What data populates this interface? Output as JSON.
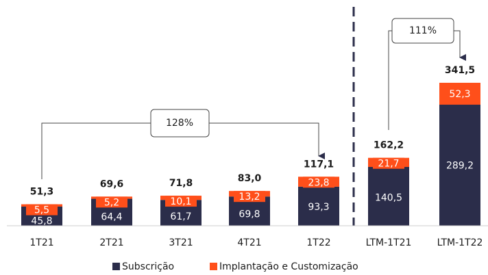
{
  "chart_data": {
    "type": "stacked_bar",
    "categories": [
      "1T21",
      "2T21",
      "3T21",
      "4T21",
      "1T22",
      "LTM-1T21",
      "LTM-1T22"
    ],
    "series": [
      {
        "name": "Subscrição",
        "color": "#2b2d4a",
        "values": [
          45.8,
          64.4,
          61.7,
          69.8,
          93.3,
          140.5,
          289.2
        ],
        "value_labels": [
          "45,8",
          "64,4",
          "61,7",
          "69,8",
          "93,3",
          "140,5",
          "289,2"
        ]
      },
      {
        "name": "Implantação e Customização",
        "color": "#ff4f1a",
        "values": [
          5.5,
          5.2,
          10.1,
          13.2,
          23.8,
          21.7,
          52.3
        ],
        "value_labels": [
          "5,5",
          "5,2",
          "10,1",
          "13,2",
          "23,8",
          "21,7",
          "52,3"
        ]
      }
    ],
    "totals": [
      51.3,
      69.6,
      71.8,
      83.0,
      117.1,
      162.2,
      341.5
    ],
    "total_labels": [
      "51,3",
      "69,6",
      "71,8",
      "83,0",
      "117,1",
      "162,2",
      "341,5"
    ],
    "annotations": [
      "128%",
      "111%"
    ],
    "legend": "bottom"
  }
}
